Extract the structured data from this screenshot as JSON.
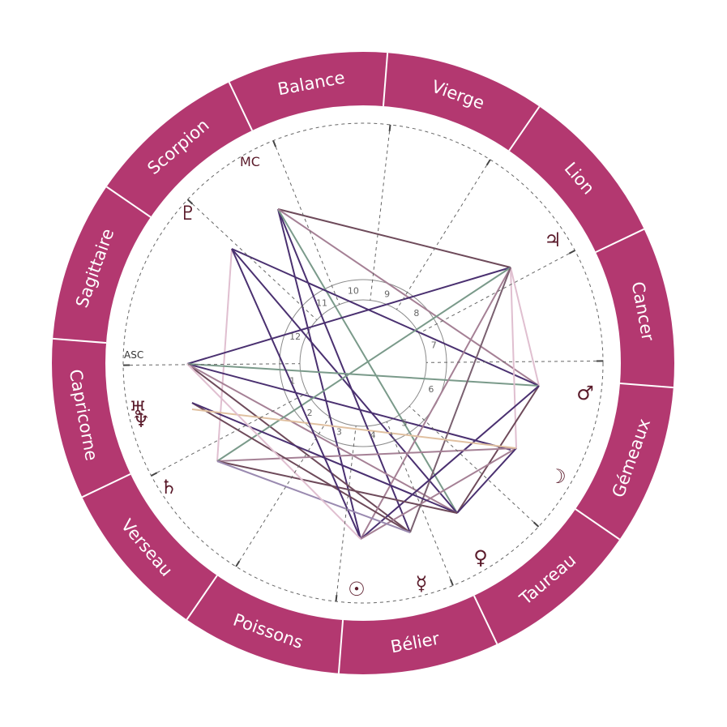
{
  "colors": {
    "ring": "#b33870",
    "ring_text": "#ffffff",
    "background": "#ffffff",
    "glyph": "#5a1a2a",
    "dashed": "#666666"
  },
  "zodiac_signs": [
    "Bélier",
    "Taureau",
    "Gémeaux",
    "Cancer",
    "Lion",
    "Vierge",
    "Balance",
    "Scorpion",
    "Sagittaire",
    "Capricorne",
    "Verseau",
    "Poissons"
  ],
  "angles": {
    "asc_label": "ASC",
    "mc_label": "MC"
  },
  "house_numbers": [
    "1",
    "2",
    "3",
    "4",
    "5",
    "6",
    "7",
    "8",
    "9",
    "10",
    "11",
    "12"
  ],
  "planets": [
    {
      "name": "sun",
      "glyph": "☉"
    },
    {
      "name": "mercury",
      "glyph": "☿"
    },
    {
      "name": "venus",
      "glyph": "♀"
    },
    {
      "name": "moon",
      "glyph": "☽"
    },
    {
      "name": "mars",
      "glyph": "♂"
    },
    {
      "name": "jupiter",
      "glyph": "♃"
    },
    {
      "name": "pluto",
      "glyph": "♇"
    },
    {
      "name": "uranus",
      "glyph": "♅"
    },
    {
      "name": "neptune",
      "glyph": "♆"
    },
    {
      "name": "saturn",
      "glyph": "♄"
    }
  ]
}
